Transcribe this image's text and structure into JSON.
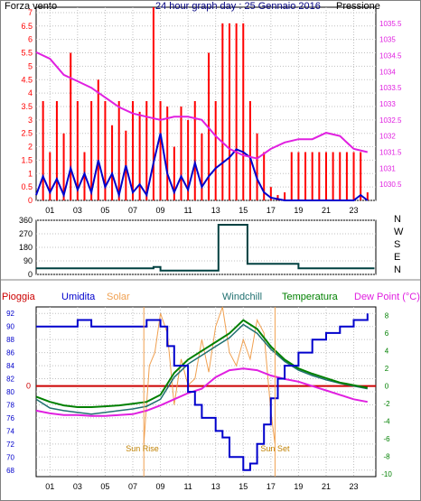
{
  "colors": {
    "wind": "#ff0000",
    "wind_line": "#0000cc",
    "pressure": "#e020e0",
    "direction": "#004040",
    "pioggia": "#cc0000",
    "umidita": "#0000cc",
    "solar": "#f0a050",
    "windchill": "#207070",
    "temperatura": "#008000",
    "dewpoint": "#e020e0",
    "grid": "#c0c0c0"
  },
  "chart_data": [
    {
      "type": "bar",
      "title": "24 hour graph day : 25 Gennaio 2016",
      "left_label": "Forza vento",
      "right_label": "Pressione",
      "x_ticks": [
        "01",
        "03",
        "05",
        "07",
        "09",
        "11",
        "13",
        "15",
        "17",
        "19",
        "21",
        "23"
      ],
      "y_left_ticks": [
        "0",
        "0.5",
        "1",
        "1.5",
        "2",
        "2.5",
        "3",
        "3.5",
        "4",
        "4.5",
        "5",
        "5.5",
        "6",
        "6.5",
        "7"
      ],
      "y_right_ticks": [
        "1030.5",
        "1031",
        "1031.5",
        "1032",
        "1032.5",
        "1033",
        "1033.5",
        "1034",
        "1034.5",
        "1035",
        "1035.5"
      ],
      "ylim_left": [
        0,
        7.2
      ],
      "ylim_right": [
        1030,
        1036
      ],
      "xlim": [
        0,
        24.6
      ],
      "series": [
        {
          "name": "Forza vento",
          "kind": "gust_bars",
          "x": [
            0.5,
            1.0,
            1.5,
            2.0,
            2.5,
            3.0,
            3.5,
            4.0,
            4.5,
            5.0,
            5.5,
            6.0,
            6.5,
            7.0,
            7.5,
            8.0,
            8.5,
            9.0,
            9.5,
            10.0,
            10.5,
            11.0,
            11.5,
            12.0,
            12.5,
            13.0,
            13.5,
            14.0,
            14.5,
            15.0,
            15.5,
            16.0,
            16.5,
            17.0,
            17.5,
            18.0,
            18.5,
            19.0,
            19.5,
            20.0,
            20.5,
            21.0,
            21.5,
            22.0,
            22.5,
            23.0,
            23.5,
            24.0
          ],
          "values": [
            3.7,
            1.8,
            3.7,
            2.5,
            5.5,
            3.7,
            1.8,
            3.7,
            4.5,
            3.7,
            2.8,
            3.7,
            2.6,
            3.7,
            3.3,
            3.7,
            7.2,
            3.7,
            3.5,
            2.0,
            3.5,
            3.0,
            3.7,
            2.5,
            5.5,
            3.7,
            6.6,
            6.6,
            6.6,
            6.6,
            3.7,
            2.5,
            1.8,
            0.5,
            0.2,
            0.3,
            1.8,
            1.8,
            1.8,
            1.8,
            1.8,
            1.8,
            1.8,
            1.8,
            1.8,
            1.8,
            1.8,
            0.3
          ]
        },
        {
          "name": "Wind average",
          "kind": "line",
          "x": [
            0,
            0.5,
            1.0,
            1.5,
            2.0,
            2.5,
            3.0,
            3.5,
            4.0,
            4.5,
            5.0,
            5.5,
            6.0,
            6.5,
            7.0,
            7.5,
            8.0,
            8.5,
            9.0,
            9.5,
            10.0,
            10.5,
            11.0,
            11.5,
            12.0,
            12.5,
            13.0,
            13.5,
            14.0,
            14.5,
            15.0,
            15.5,
            16.0,
            16.5,
            17.0,
            18.0,
            19.0,
            20.0,
            21.0,
            22.0,
            23.0,
            23.5,
            24.0
          ],
          "values": [
            0.2,
            0.9,
            0.3,
            0.8,
            0.2,
            1.2,
            0.4,
            1.0,
            0.3,
            1.5,
            0.5,
            1.0,
            0.2,
            1.3,
            0.3,
            0.6,
            0.2,
            1.4,
            2.5,
            1.0,
            0.3,
            0.9,
            0.4,
            1.4,
            0.5,
            0.9,
            1.2,
            1.4,
            1.6,
            1.9,
            1.8,
            1.6,
            0.8,
            0.3,
            0.1,
            0.0,
            0.0,
            0.0,
            0.0,
            0.0,
            0.0,
            0.2,
            0.0
          ]
        },
        {
          "name": "Pressione",
          "kind": "line",
          "axis": "right",
          "x": [
            0,
            1,
            2,
            3,
            4,
            5,
            6,
            7,
            8,
            9,
            10,
            11,
            12,
            13,
            14,
            15,
            16,
            17,
            18,
            19,
            20,
            21,
            22,
            23,
            24
          ],
          "values": [
            1034.6,
            1034.4,
            1033.9,
            1033.7,
            1033.5,
            1033.2,
            1032.9,
            1032.7,
            1032.6,
            1032.5,
            1032.6,
            1032.6,
            1032.5,
            1032.0,
            1031.6,
            1031.4,
            1031.3,
            1031.6,
            1031.8,
            1031.9,
            1031.9,
            1032.1,
            1032.0,
            1031.6,
            1031.5
          ]
        }
      ]
    },
    {
      "type": "line",
      "y_ticks": [
        "0",
        "90",
        "180",
        "270",
        "360"
      ],
      "right_labels": [
        "N",
        "W",
        "S",
        "E",
        "N"
      ],
      "ylim": [
        0,
        360
      ],
      "xlim": [
        0,
        24.6
      ],
      "series": [
        {
          "name": "Direzione",
          "x": [
            0,
            8,
            8.5,
            9,
            12,
            13,
            13.2,
            15,
            15.3,
            16,
            18,
            19,
            24.5
          ],
          "values": [
            40,
            40,
            50,
            25,
            25,
            25,
            330,
            330,
            70,
            70,
            70,
            40,
            40
          ]
        }
      ]
    },
    {
      "type": "line",
      "legend": [
        "Pioggia",
        "Umidita",
        "Solar",
        "Windchill",
        "Temperatura",
        "Dew Point (°C)"
      ],
      "y_left_ticks": [
        "68",
        "70",
        "72",
        "74",
        "76",
        "78",
        "80",
        "82",
        "84",
        "86",
        "88",
        "90",
        "92"
      ],
      "y_right_ticks": [
        "-10",
        "-8",
        "-6",
        "-4",
        "-2",
        "0",
        "2",
        "4",
        "6",
        "8"
      ],
      "rain_label": "0",
      "annotations": [
        "Sun Rise",
        "Sun Set"
      ],
      "sunrise_x": 7.8,
      "sunset_x": 17.3,
      "ylim_left": [
        67,
        93
      ],
      "ylim_right": [
        -10.3,
        9
      ],
      "xlim": [
        0,
        24.6
      ],
      "series": [
        {
          "name": "Umidita",
          "axis": "left",
          "x": [
            0,
            2,
            3,
            3.5,
            4,
            7,
            8,
            9,
            9.5,
            10,
            11,
            11.5,
            12,
            13,
            13.5,
            14,
            15,
            15.5,
            16,
            16.5,
            17,
            17.5,
            18,
            19,
            20,
            21,
            22,
            23,
            24
          ],
          "values": [
            90,
            90,
            91,
            91,
            90,
            90,
            91,
            90,
            87,
            84,
            80,
            78,
            76,
            74,
            73,
            70,
            68,
            69,
            72,
            75,
            79,
            82,
            84,
            86,
            88,
            89,
            90,
            91,
            92
          ]
        },
        {
          "name": "Temperatura",
          "axis": "right",
          "x": [
            0,
            1,
            2,
            3,
            4,
            5,
            6,
            7,
            8,
            9,
            10,
            11,
            12,
            13,
            14,
            15,
            16,
            17,
            18,
            19,
            20,
            21,
            22,
            23,
            24
          ],
          "values": [
            -1.2,
            -1.8,
            -2.2,
            -2.4,
            -2.4,
            -2.3,
            -2.2,
            -2.0,
            -1.8,
            -1.0,
            1.5,
            3.0,
            4.0,
            5.0,
            6.0,
            7.5,
            6.5,
            4.5,
            3.0,
            2.0,
            1.4,
            0.9,
            0.4,
            0.1,
            -0.2
          ]
        },
        {
          "name": "Dew Point (°C)",
          "axis": "right",
          "x": [
            0,
            1,
            2,
            3,
            4,
            5,
            6,
            7,
            8,
            9,
            10,
            11,
            12,
            13,
            14,
            15,
            16,
            17,
            18,
            19,
            20,
            21,
            22,
            23,
            24
          ],
          "values": [
            -2.8,
            -3.1,
            -3.3,
            -3.3,
            -3.4,
            -3.4,
            -3.3,
            -3.2,
            -2.8,
            -2.2,
            -1.5,
            -0.8,
            -0.3,
            1.0,
            1.8,
            2.0,
            1.8,
            1.2,
            0.8,
            0.5,
            0.0,
            -0.5,
            -1.0,
            -1.5,
            -1.8
          ]
        },
        {
          "name": "Windchill",
          "axis": "right",
          "x": [
            0,
            1,
            2,
            3,
            4,
            5,
            6,
            7,
            8,
            9,
            10,
            11,
            12,
            13,
            14,
            15,
            16,
            17,
            18,
            19,
            20,
            21,
            22,
            23,
            24
          ],
          "values": [
            -1.5,
            -2.5,
            -2.8,
            -3.0,
            -3.2,
            -3.0,
            -2.8,
            -2.6,
            -2.3,
            -1.5,
            1.0,
            2.5,
            3.5,
            4.5,
            5.5,
            7.0,
            6.0,
            4.2,
            2.8,
            1.8,
            1.2,
            0.7,
            0.3,
            0.0,
            -0.3
          ]
        },
        {
          "name": "Solar",
          "axis": "left",
          "x": [
            7.8,
            8.2,
            8.6,
            9,
            9.5,
            10,
            10.5,
            11,
            11.5,
            12,
            12.5,
            13,
            13.5,
            14,
            14.5,
            15,
            15.5,
            16,
            16.5,
            17,
            17.3
          ],
          "values": [
            72,
            84,
            86,
            92,
            89,
            78,
            85,
            81,
            82,
            88,
            83,
            90,
            93,
            86,
            84,
            88,
            85,
            91,
            89,
            77,
            72
          ]
        }
      ]
    }
  ]
}
